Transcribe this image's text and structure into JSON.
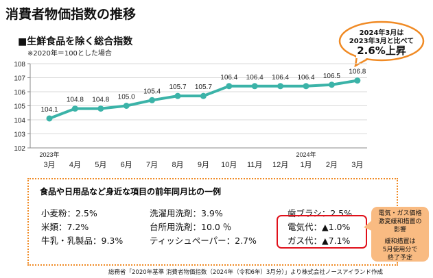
{
  "title": "消費者物価指数の推移",
  "subtitle": "■生鮮食品を除く総合指数",
  "note": "※2020年＝100とした場合",
  "callout": {
    "line1": "2024年3月は",
    "line2": "2023年3月と比べて",
    "line3": "2.6%上昇"
  },
  "chart_data": {
    "type": "line",
    "categories": [
      "3月",
      "4月",
      "5月",
      "6月",
      "7月",
      "8月",
      "9月",
      "10月",
      "11月",
      "12月",
      "1月",
      "2月",
      "3月"
    ],
    "year_labels": {
      "first": "2023年",
      "jan": "2024年"
    },
    "values": [
      104.1,
      104.8,
      104.8,
      105.0,
      105.4,
      105.7,
      105.7,
      106.4,
      106.4,
      106.4,
      106.4,
      106.5,
      106.8
    ],
    "value_labels": [
      "104.1",
      "104.8",
      "104.8",
      "105.0",
      "105.4",
      "105.7",
      "105.7",
      "106.4",
      "106.4",
      "106.4",
      "106.4",
      "106.5",
      "106.8"
    ],
    "yticks": [
      "102",
      "103",
      "104",
      "105",
      "106",
      "107",
      "108"
    ],
    "ylim": [
      102,
      108
    ],
    "color": "#3bb3a8",
    "grid": true
  },
  "box": {
    "title": "食品や日用品など身近な項目の前年同月比の一例",
    "col1": [
      "小麦粉：2.5%",
      "米類：7.2%",
      "牛乳・乳製品：9.3%"
    ],
    "col2": [
      "洗濯用洗剤：3.9%",
      "台所用洗剤：10.0 ％",
      "ティッシュペーパー：2.7%"
    ],
    "col3": [
      "歯ブラシ：2.5%",
      "電気代：▲1.0%",
      "ガス代：▲7.1%"
    ]
  },
  "bubble": {
    "l1": "電気・ガス価格",
    "l2": "激変緩和措置の",
    "l3": "影響",
    "l4": "緩和措置は",
    "l5": "5月使用分で",
    "l6": "終了予定"
  },
  "footer": "総務省「2020年基準 消費者物価指数（2024年（令和6年）3月分）」より株式会社ノースアイランド作成"
}
